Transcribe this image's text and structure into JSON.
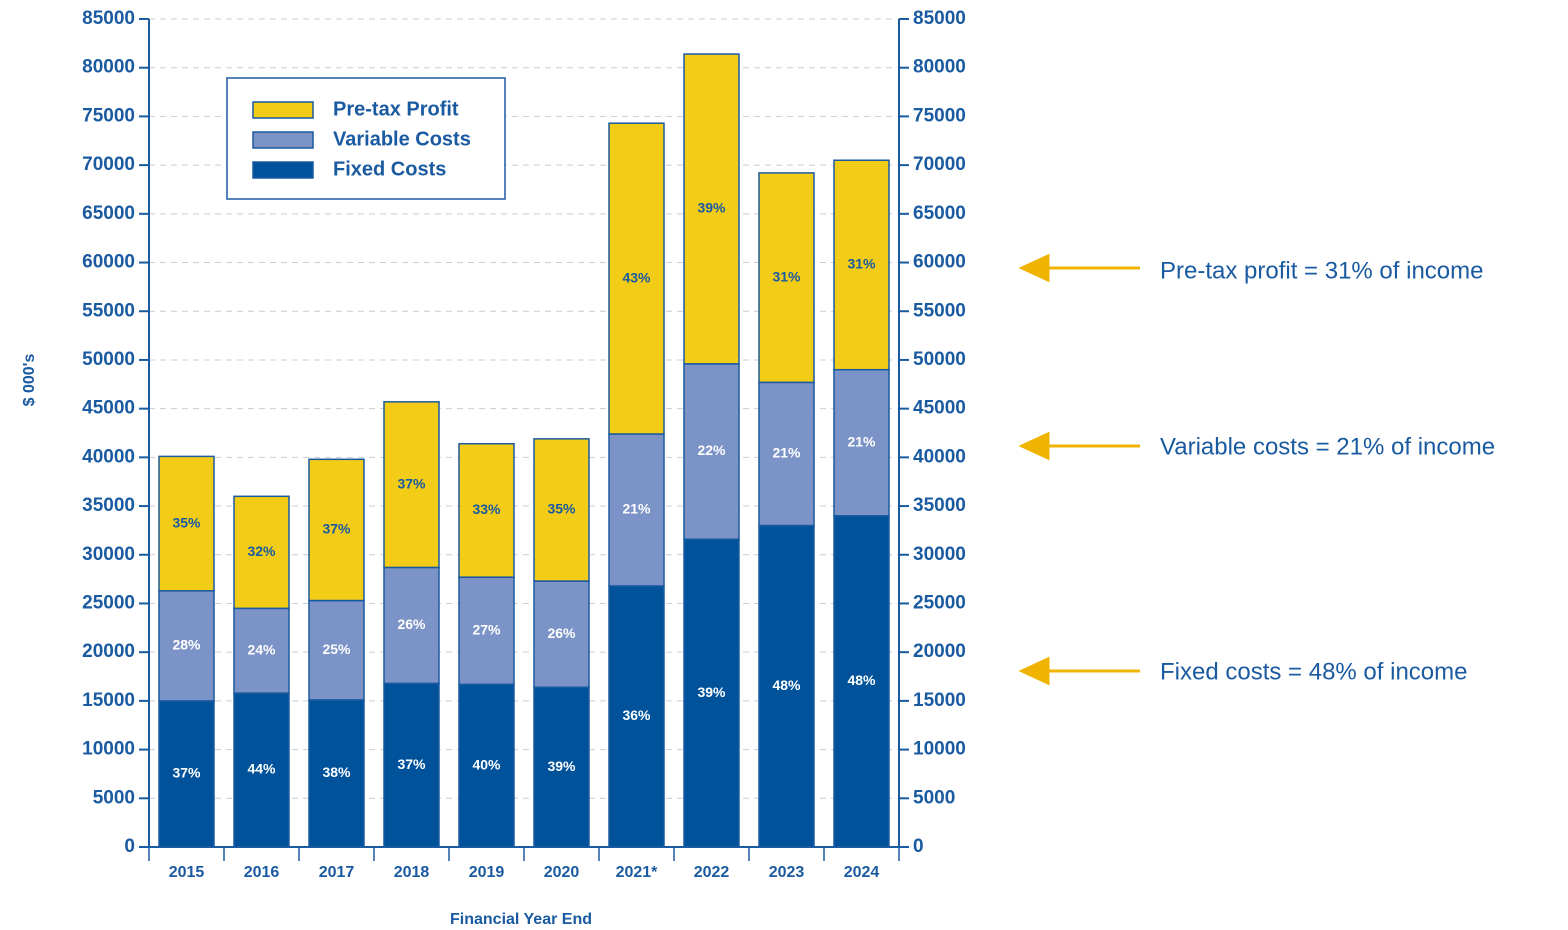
{
  "chart_data": {
    "type": "stacked_bar",
    "x_label": "Financial Year End",
    "y_label": "$ 000's",
    "categories": [
      "2015",
      "2016",
      "2017",
      "2018",
      "2019",
      "2020",
      "2021*",
      "2022",
      "2023",
      "2024"
    ],
    "series": [
      {
        "name": "Fixed Costs",
        "color": "#00529b",
        "label_color": "#ffffff",
        "values": [
          15000,
          15800,
          15100,
          16800,
          16700,
          16400,
          26800,
          31600,
          33000,
          34000
        ],
        "segment_labels": [
          "37%",
          "44%",
          "38%",
          "37%",
          "40%",
          "39%",
          "36%",
          "39%",
          "48%",
          "48%"
        ]
      },
      {
        "name": "Variable Costs",
        "color": "#7b93c6",
        "label_color": "#ffffff",
        "values": [
          11300,
          8700,
          10200,
          11900,
          11000,
          10900,
          15600,
          18000,
          14700,
          15000
        ],
        "segment_labels": [
          "28%",
          "24%",
          "25%",
          "26%",
          "27%",
          "26%",
          "21%",
          "22%",
          "21%",
          "21%"
        ]
      },
      {
        "name": "Pre-tax Profit",
        "color": "#f2cc17",
        "label_color": "#1a5aa0",
        "values": [
          13800,
          11500,
          14500,
          17000,
          13700,
          14600,
          31900,
          31800,
          21500,
          21500
        ],
        "segment_labels": [
          "35%",
          "32%",
          "37%",
          "37%",
          "33%",
          "35%",
          "43%",
          "39%",
          "31%",
          "31%"
        ]
      }
    ],
    "ylim": [
      0,
      85000
    ],
    "yticks": [
      0,
      5000,
      10000,
      15000,
      20000,
      25000,
      30000,
      35000,
      40000,
      45000,
      50000,
      55000,
      60000,
      65000,
      70000,
      75000,
      80000,
      85000
    ],
    "y2lim": [
      0,
      85000
    ],
    "y2ticks": [
      0,
      5000,
      10000,
      15000,
      20000,
      25000,
      30000,
      35000,
      40000,
      45000,
      50000,
      55000,
      60000,
      65000,
      70000,
      75000,
      80000,
      85000
    ],
    "grid": true,
    "legend": "upper left",
    "annotations": [
      {
        "text": "Pre-tax profit = 31% of income"
      },
      {
        "text": "Variable costs = 21% of income"
      },
      {
        "text": "Fixed costs = 48% of income"
      }
    ]
  }
}
